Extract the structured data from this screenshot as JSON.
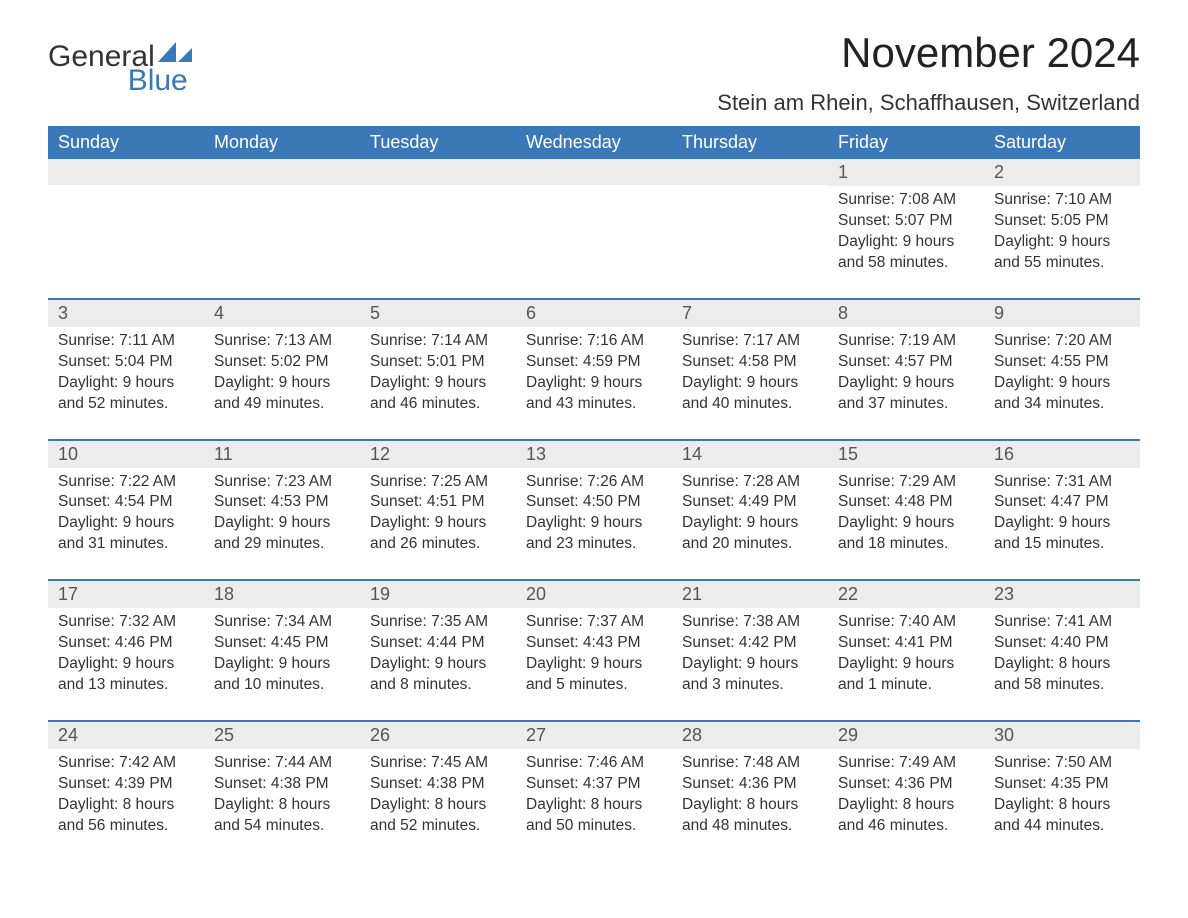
{
  "brand": {
    "name_a": "General",
    "name_b": "Blue",
    "accent": "#3b78b8"
  },
  "title": "November 2024",
  "location": "Stein am Rhein, Schaffhausen, Switzerland",
  "colors": {
    "header_bg": "#3b78b8",
    "header_text": "#ffffff",
    "daynum_bg": "#ececec",
    "text": "#333333",
    "rule": "#3b78b8",
    "page_bg": "#ffffff"
  },
  "layout": {
    "type": "calendar",
    "columns": 7,
    "rows": 5,
    "start_day_index": 5,
    "font_family": "Arial",
    "title_fontsize": 42,
    "location_fontsize": 22,
    "header_fontsize": 18,
    "body_fontsize": 15.5
  },
  "weekdays": [
    "Sunday",
    "Monday",
    "Tuesday",
    "Wednesday",
    "Thursday",
    "Friday",
    "Saturday"
  ],
  "days": [
    {
      "n": 1,
      "sunrise": "Sunrise: 7:08 AM",
      "sunset": "Sunset: 5:07 PM",
      "d1": "Daylight: 9 hours",
      "d2": "and 58 minutes."
    },
    {
      "n": 2,
      "sunrise": "Sunrise: 7:10 AM",
      "sunset": "Sunset: 5:05 PM",
      "d1": "Daylight: 9 hours",
      "d2": "and 55 minutes."
    },
    {
      "n": 3,
      "sunrise": "Sunrise: 7:11 AM",
      "sunset": "Sunset: 5:04 PM",
      "d1": "Daylight: 9 hours",
      "d2": "and 52 minutes."
    },
    {
      "n": 4,
      "sunrise": "Sunrise: 7:13 AM",
      "sunset": "Sunset: 5:02 PM",
      "d1": "Daylight: 9 hours",
      "d2": "and 49 minutes."
    },
    {
      "n": 5,
      "sunrise": "Sunrise: 7:14 AM",
      "sunset": "Sunset: 5:01 PM",
      "d1": "Daylight: 9 hours",
      "d2": "and 46 minutes."
    },
    {
      "n": 6,
      "sunrise": "Sunrise: 7:16 AM",
      "sunset": "Sunset: 4:59 PM",
      "d1": "Daylight: 9 hours",
      "d2": "and 43 minutes."
    },
    {
      "n": 7,
      "sunrise": "Sunrise: 7:17 AM",
      "sunset": "Sunset: 4:58 PM",
      "d1": "Daylight: 9 hours",
      "d2": "and 40 minutes."
    },
    {
      "n": 8,
      "sunrise": "Sunrise: 7:19 AM",
      "sunset": "Sunset: 4:57 PM",
      "d1": "Daylight: 9 hours",
      "d2": "and 37 minutes."
    },
    {
      "n": 9,
      "sunrise": "Sunrise: 7:20 AM",
      "sunset": "Sunset: 4:55 PM",
      "d1": "Daylight: 9 hours",
      "d2": "and 34 minutes."
    },
    {
      "n": 10,
      "sunrise": "Sunrise: 7:22 AM",
      "sunset": "Sunset: 4:54 PM",
      "d1": "Daylight: 9 hours",
      "d2": "and 31 minutes."
    },
    {
      "n": 11,
      "sunrise": "Sunrise: 7:23 AM",
      "sunset": "Sunset: 4:53 PM",
      "d1": "Daylight: 9 hours",
      "d2": "and 29 minutes."
    },
    {
      "n": 12,
      "sunrise": "Sunrise: 7:25 AM",
      "sunset": "Sunset: 4:51 PM",
      "d1": "Daylight: 9 hours",
      "d2": "and 26 minutes."
    },
    {
      "n": 13,
      "sunrise": "Sunrise: 7:26 AM",
      "sunset": "Sunset: 4:50 PM",
      "d1": "Daylight: 9 hours",
      "d2": "and 23 minutes."
    },
    {
      "n": 14,
      "sunrise": "Sunrise: 7:28 AM",
      "sunset": "Sunset: 4:49 PM",
      "d1": "Daylight: 9 hours",
      "d2": "and 20 minutes."
    },
    {
      "n": 15,
      "sunrise": "Sunrise: 7:29 AM",
      "sunset": "Sunset: 4:48 PM",
      "d1": "Daylight: 9 hours",
      "d2": "and 18 minutes."
    },
    {
      "n": 16,
      "sunrise": "Sunrise: 7:31 AM",
      "sunset": "Sunset: 4:47 PM",
      "d1": "Daylight: 9 hours",
      "d2": "and 15 minutes."
    },
    {
      "n": 17,
      "sunrise": "Sunrise: 7:32 AM",
      "sunset": "Sunset: 4:46 PM",
      "d1": "Daylight: 9 hours",
      "d2": "and 13 minutes."
    },
    {
      "n": 18,
      "sunrise": "Sunrise: 7:34 AM",
      "sunset": "Sunset: 4:45 PM",
      "d1": "Daylight: 9 hours",
      "d2": "and 10 minutes."
    },
    {
      "n": 19,
      "sunrise": "Sunrise: 7:35 AM",
      "sunset": "Sunset: 4:44 PM",
      "d1": "Daylight: 9 hours",
      "d2": "and 8 minutes."
    },
    {
      "n": 20,
      "sunrise": "Sunrise: 7:37 AM",
      "sunset": "Sunset: 4:43 PM",
      "d1": "Daylight: 9 hours",
      "d2": "and 5 minutes."
    },
    {
      "n": 21,
      "sunrise": "Sunrise: 7:38 AM",
      "sunset": "Sunset: 4:42 PM",
      "d1": "Daylight: 9 hours",
      "d2": "and 3 minutes."
    },
    {
      "n": 22,
      "sunrise": "Sunrise: 7:40 AM",
      "sunset": "Sunset: 4:41 PM",
      "d1": "Daylight: 9 hours",
      "d2": "and 1 minute."
    },
    {
      "n": 23,
      "sunrise": "Sunrise: 7:41 AM",
      "sunset": "Sunset: 4:40 PM",
      "d1": "Daylight: 8 hours",
      "d2": "and 58 minutes."
    },
    {
      "n": 24,
      "sunrise": "Sunrise: 7:42 AM",
      "sunset": "Sunset: 4:39 PM",
      "d1": "Daylight: 8 hours",
      "d2": "and 56 minutes."
    },
    {
      "n": 25,
      "sunrise": "Sunrise: 7:44 AM",
      "sunset": "Sunset: 4:38 PM",
      "d1": "Daylight: 8 hours",
      "d2": "and 54 minutes."
    },
    {
      "n": 26,
      "sunrise": "Sunrise: 7:45 AM",
      "sunset": "Sunset: 4:38 PM",
      "d1": "Daylight: 8 hours",
      "d2": "and 52 minutes."
    },
    {
      "n": 27,
      "sunrise": "Sunrise: 7:46 AM",
      "sunset": "Sunset: 4:37 PM",
      "d1": "Daylight: 8 hours",
      "d2": "and 50 minutes."
    },
    {
      "n": 28,
      "sunrise": "Sunrise: 7:48 AM",
      "sunset": "Sunset: 4:36 PM",
      "d1": "Daylight: 8 hours",
      "d2": "and 48 minutes."
    },
    {
      "n": 29,
      "sunrise": "Sunrise: 7:49 AM",
      "sunset": "Sunset: 4:36 PM",
      "d1": "Daylight: 8 hours",
      "d2": "and 46 minutes."
    },
    {
      "n": 30,
      "sunrise": "Sunrise: 7:50 AM",
      "sunset": "Sunset: 4:35 PM",
      "d1": "Daylight: 8 hours",
      "d2": "and 44 minutes."
    }
  ]
}
